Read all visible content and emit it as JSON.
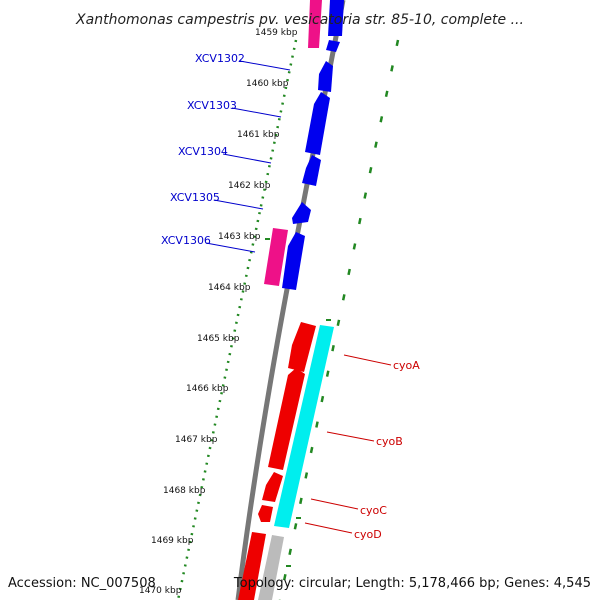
{
  "title": "Xanthomonas campestris pv. vesicatoria str. 85-10, complete ...",
  "footer": {
    "accession": "Accession: NC_007508",
    "topology": "Topology: circular; Length: 5,178,466 bp; Genes: 4,545"
  },
  "colors": {
    "forward_strand": "#0000ee",
    "reverse_strand": "#ee0000",
    "pink_gene": "#ee1188",
    "cyan_gene": "#00eeee",
    "grey_gene": "#bbbbbb",
    "backbone": "#777777",
    "tick_marks": "#228822",
    "left_labels": "#0000cc",
    "right_labels": "#cc0000"
  },
  "ticks": [
    {
      "label": "1459 kbp"
    },
    {
      "label": "1460 kbp"
    },
    {
      "label": "1461 kbp"
    },
    {
      "label": "1462 kbp"
    },
    {
      "label": "1463 kbp"
    },
    {
      "label": "1464 kbp"
    },
    {
      "label": "1465 kbp"
    },
    {
      "label": "1466 kbp"
    },
    {
      "label": "1467 kbp"
    },
    {
      "label": "1468 kbp"
    },
    {
      "label": "1469 kbp"
    },
    {
      "label": "1470 kbp"
    }
  ],
  "left_genes": [
    {
      "label": "XCV1302"
    },
    {
      "label": "XCV1303"
    },
    {
      "label": "XCV1304"
    },
    {
      "label": "XCV1305"
    },
    {
      "label": "XCV1306"
    }
  ],
  "right_genes": [
    {
      "label": "cyoA"
    },
    {
      "label": "cyoB"
    },
    {
      "label": "cyoC"
    },
    {
      "label": "cyoD"
    }
  ]
}
